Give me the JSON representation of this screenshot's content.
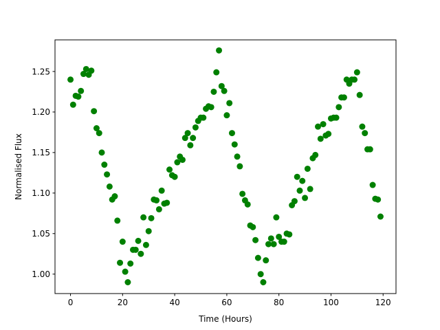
{
  "chart_data": {
    "type": "scatter",
    "title": "",
    "xlabel": "Time (Hours)",
    "ylabel": "Normalised Flux",
    "xlim": [
      -5.95,
      124.95
    ],
    "ylim": [
      0.976,
      1.289
    ],
    "xticks": [
      0,
      20,
      40,
      60,
      80,
      100,
      120
    ],
    "yticks": [
      1.0,
      1.05,
      1.1,
      1.15,
      1.2,
      1.25
    ],
    "xtick_labels": [
      "0",
      "20",
      "40",
      "60",
      "80",
      "100",
      "120"
    ],
    "ytick_labels": [
      "1.00",
      "1.05",
      "1.10",
      "1.15",
      "1.20",
      "1.25"
    ],
    "grid": false,
    "marker_color": "#008000",
    "series": [
      {
        "x": [
          0,
          1,
          2,
          3,
          4,
          5,
          6,
          7,
          8,
          9,
          10,
          11,
          12,
          13,
          14,
          15,
          16,
          17,
          18,
          19,
          20,
          21,
          22,
          23,
          24,
          25,
          26,
          27,
          28,
          29,
          30,
          31,
          32,
          33,
          34,
          35,
          36,
          37,
          38,
          39,
          40,
          41,
          42,
          43,
          44,
          45,
          46,
          47,
          48,
          49,
          50,
          51,
          52,
          53,
          54,
          55,
          56,
          57,
          58,
          59,
          60,
          61,
          62,
          63,
          64,
          65,
          66,
          67,
          68,
          69,
          70,
          71,
          72,
          73,
          74,
          75,
          76,
          77,
          78,
          79,
          80,
          81,
          82,
          83,
          84,
          85,
          86,
          87,
          88,
          89,
          90,
          91,
          92,
          93,
          94,
          95,
          96,
          97,
          98,
          99,
          100,
          101,
          102,
          103,
          104,
          105,
          106,
          107,
          108,
          109,
          110,
          111,
          112,
          113,
          114,
          115,
          116,
          117,
          118,
          119
        ],
        "y": [
          1.24,
          1.209,
          1.22,
          1.219,
          1.226,
          1.247,
          1.253,
          1.246,
          1.251,
          1.201,
          1.18,
          1.174,
          1.15,
          1.135,
          1.123,
          1.108,
          1.092,
          1.096,
          1.066,
          1.014,
          1.04,
          1.003,
          0.99,
          1.013,
          1.03,
          1.03,
          1.041,
          1.025,
          1.07,
          1.036,
          1.053,
          1.069,
          1.092,
          1.091,
          1.08,
          1.103,
          1.087,
          1.088,
          1.129,
          1.122,
          1.12,
          1.138,
          1.145,
          1.141,
          1.168,
          1.174,
          1.159,
          1.168,
          1.181,
          1.189,
          1.193,
          1.193,
          1.204,
          1.207,
          1.206,
          1.225,
          1.249,
          1.276,
          1.232,
          1.226,
          1.196,
          1.211,
          1.174,
          1.16,
          1.145,
          1.133,
          1.099,
          1.091,
          1.086,
          1.06,
          1.058,
          1.042,
          1.02,
          1.0,
          0.99,
          1.017,
          1.037,
          1.044,
          1.037,
          1.07,
          1.046,
          1.04,
          1.04,
          1.05,
          1.049,
          1.085,
          1.09,
          1.12,
          1.103,
          1.115,
          1.094,
          1.13,
          1.105,
          1.143,
          1.147,
          1.182,
          1.167,
          1.185,
          1.171,
          1.173,
          1.192,
          1.193,
          1.193,
          1.206,
          1.218,
          1.218,
          1.24,
          1.235,
          1.24,
          1.24,
          1.249,
          1.221,
          1.182,
          1.174,
          1.154,
          1.154,
          1.11,
          1.093,
          1.092,
          1.071
        ]
      }
    ]
  }
}
